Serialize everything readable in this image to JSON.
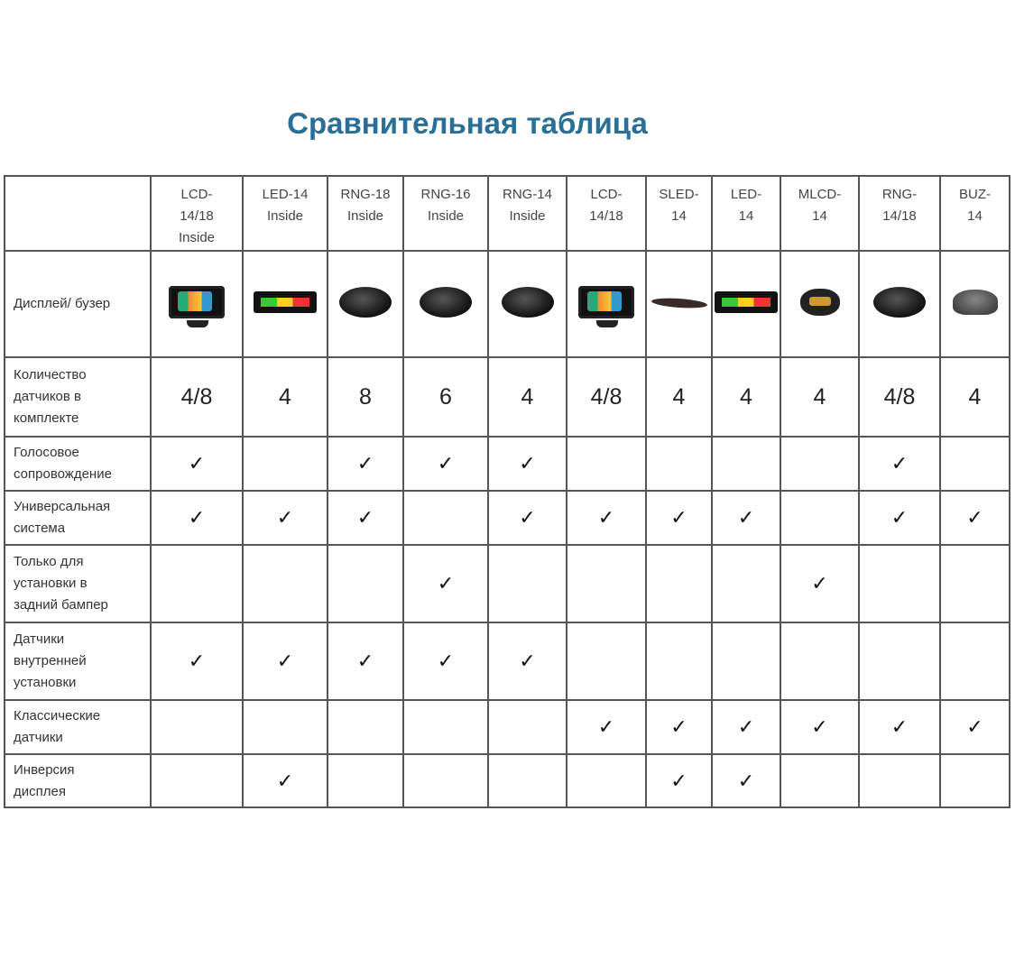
{
  "title": "Сравнительная таблица",
  "columns": [
    {
      "name": "LCD-\n14/18\nInside",
      "device": "lcd",
      "count": "4/8"
    },
    {
      "name": "LED-14\nInside",
      "device": "led",
      "count": "4"
    },
    {
      "name": "RNG-18\nInside",
      "device": "round",
      "count": "8"
    },
    {
      "name": "RNG-16\nInside",
      "device": "round",
      "count": "6"
    },
    {
      "name": "RNG-14\nInside",
      "device": "round",
      "count": "4"
    },
    {
      "name": "LCD-\n14/18",
      "device": "lcd",
      "count": "4/8"
    },
    {
      "name": "SLED-\n14",
      "device": "sled",
      "count": "4"
    },
    {
      "name": "LED-\n14",
      "device": "led",
      "count": "4"
    },
    {
      "name": "MLCD-\n14",
      "device": "mlcd",
      "count": "4"
    },
    {
      "name": "RNG-\n14/18",
      "device": "round",
      "count": "4/8"
    },
    {
      "name": "BUZ-\n14",
      "device": "buz",
      "count": "4"
    }
  ],
  "display_row_label": "Дисплей/ бузер",
  "count_row_label": "Количество\nдатчиков в\nкомплекте",
  "check_mark": "✓",
  "feature_rows": [
    {
      "label": "Голосовое\nсопровождение",
      "checks": [
        1,
        0,
        1,
        1,
        1,
        0,
        0,
        0,
        0,
        1,
        0
      ]
    },
    {
      "label": "Универсальная\nсистема",
      "checks": [
        1,
        1,
        1,
        0,
        1,
        1,
        1,
        1,
        0,
        1,
        1
      ]
    },
    {
      "label": "Только для\nустановки в\nзадний бампер",
      "checks": [
        0,
        0,
        0,
        1,
        0,
        0,
        0,
        0,
        1,
        0,
        0
      ]
    },
    {
      "label": "Датчики\nвнутренней\nустановки",
      "checks": [
        1,
        1,
        1,
        1,
        1,
        0,
        0,
        0,
        0,
        0,
        0
      ]
    },
    {
      "label": "Классические\nдатчики",
      "checks": [
        0,
        0,
        0,
        0,
        0,
        1,
        1,
        1,
        1,
        1,
        1
      ]
    },
    {
      "label": "Инверсия\nдисплея",
      "checks": [
        0,
        1,
        0,
        0,
        0,
        0,
        1,
        1,
        0,
        0,
        0
      ]
    }
  ]
}
